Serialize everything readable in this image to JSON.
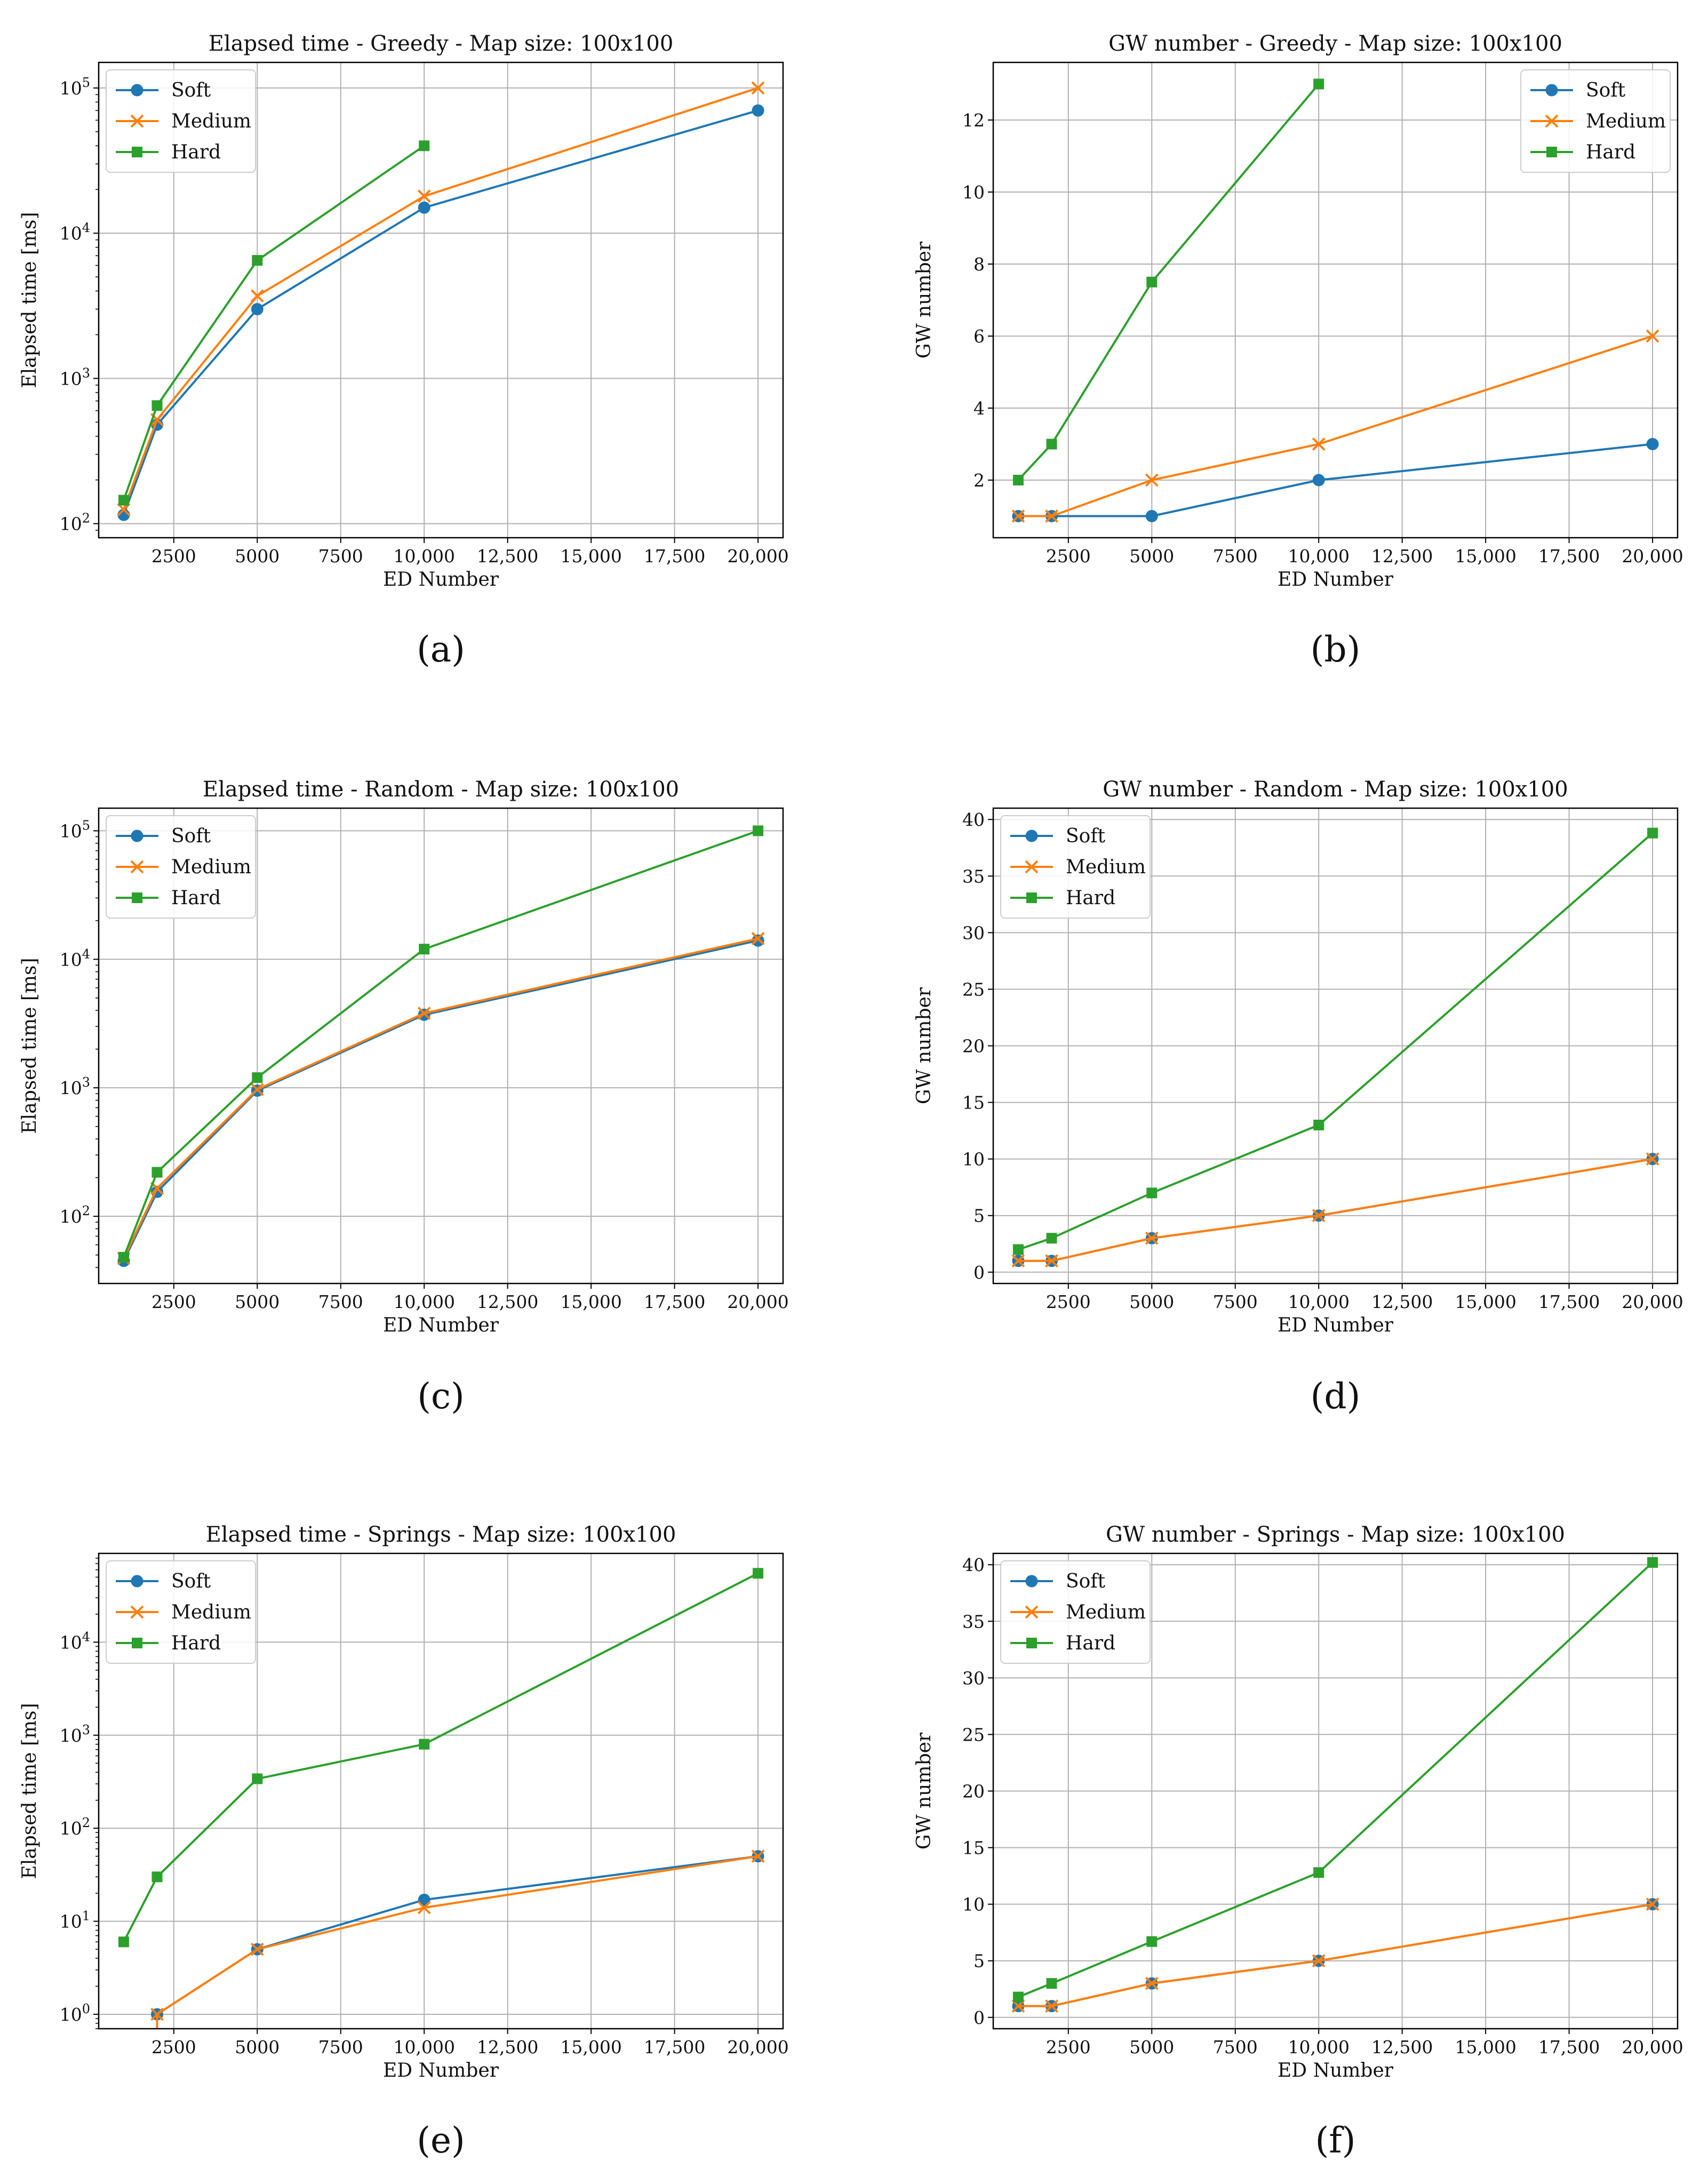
{
  "figure": {
    "caption_note": "Six-panel figure of line charts"
  },
  "colors": {
    "soft": "#1f77b4",
    "medium": "#ff7f0e",
    "hard": "#2ca02c",
    "grid": "#b0b0b0"
  },
  "chart_data": [
    {
      "type": "line",
      "panel": "(a)",
      "yscale": "log",
      "title": "Elapsed time - Greedy - Map size: 100x100",
      "xlabel": "ED Number",
      "ylabel": "Elapsed time [ms]",
      "xlim": [
        250,
        20750
      ],
      "ylim": [
        80,
        150000
      ],
      "xticks": [
        2500,
        5000,
        7500,
        10000,
        12500,
        15000,
        17500,
        20000
      ],
      "xtick_labels": [
        "2500",
        "5000",
        "7500",
        "10,000",
        "12,500",
        "15,000",
        "17,500",
        "20,000"
      ],
      "yticks": [
        100,
        1000,
        10000,
        100000
      ],
      "legend_loc": "upper left",
      "series": [
        {
          "name": "Soft",
          "marker": "circle",
          "x": [
            1000,
            2000,
            5000,
            10000,
            20000
          ],
          "y": [
            115,
            480,
            3000,
            15000,
            70000
          ]
        },
        {
          "name": "Medium",
          "marker": "x",
          "x": [
            1000,
            2000,
            5000,
            10000,
            20000
          ],
          "y": [
            125,
            520,
            3700,
            18000,
            100000
          ]
        },
        {
          "name": "Hard",
          "marker": "square",
          "x": [
            1000,
            2000,
            5000,
            10000
          ],
          "y": [
            145,
            650,
            6500,
            40000
          ]
        }
      ]
    },
    {
      "type": "line",
      "panel": "(b)",
      "yscale": "linear",
      "title": "GW number - Greedy - Map size: 100x100",
      "xlabel": "ED Number",
      "ylabel": "GW number",
      "xlim": [
        250,
        20750
      ],
      "ylim": [
        0.4,
        13.6
      ],
      "xticks": [
        2500,
        5000,
        7500,
        10000,
        12500,
        15000,
        17500,
        20000
      ],
      "xtick_labels": [
        "2500",
        "5000",
        "7500",
        "10,000",
        "12,500",
        "15,000",
        "17,500",
        "20,000"
      ],
      "yticks": [
        2,
        4,
        6,
        8,
        10,
        12
      ],
      "ytick_labels": [
        "2",
        "4",
        "6",
        "8",
        "10",
        "12"
      ],
      "legend_loc": "upper right",
      "series": [
        {
          "name": "Soft",
          "marker": "circle",
          "x": [
            1000,
            2000,
            5000,
            10000,
            20000
          ],
          "y": [
            1,
            1,
            1,
            2,
            3
          ]
        },
        {
          "name": "Medium",
          "marker": "x",
          "x": [
            1000,
            2000,
            5000,
            10000,
            20000
          ],
          "y": [
            1,
            1,
            2,
            3,
            6
          ]
        },
        {
          "name": "Hard",
          "marker": "square",
          "x": [
            1000,
            2000,
            5000,
            10000
          ],
          "y": [
            2,
            3,
            7.5,
            13
          ]
        }
      ]
    },
    {
      "type": "line",
      "panel": "(c)",
      "yscale": "log",
      "title": "Elapsed time - Random - Map size: 100x100",
      "xlabel": "ED Number",
      "ylabel": "Elapsed time [ms]",
      "xlim": [
        250,
        20750
      ],
      "ylim": [
        30,
        150000
      ],
      "xticks": [
        2500,
        5000,
        7500,
        10000,
        12500,
        15000,
        17500,
        20000
      ],
      "xtick_labels": [
        "2500",
        "5000",
        "7500",
        "10,000",
        "12,500",
        "15,000",
        "17,500",
        "20,000"
      ],
      "yticks": [
        100,
        1000,
        10000,
        100000
      ],
      "legend_loc": "upper left",
      "series": [
        {
          "name": "Soft",
          "marker": "circle",
          "x": [
            1000,
            2000,
            5000,
            10000,
            20000
          ],
          "y": [
            45,
            155,
            950,
            3700,
            14000
          ]
        },
        {
          "name": "Medium",
          "marker": "x",
          "x": [
            1000,
            2000,
            5000,
            10000,
            20000
          ],
          "y": [
            47,
            165,
            970,
            3800,
            14500
          ]
        },
        {
          "name": "Hard",
          "marker": "square",
          "x": [
            1000,
            2000,
            5000,
            10000,
            20000
          ],
          "y": [
            48,
            220,
            1200,
            12000,
            100000
          ]
        }
      ]
    },
    {
      "type": "line",
      "panel": "(d)",
      "yscale": "linear",
      "title": "GW number - Random - Map size: 100x100",
      "xlabel": "ED Number",
      "ylabel": "GW number",
      "xlim": [
        250,
        20750
      ],
      "ylim": [
        -1,
        41
      ],
      "xticks": [
        2500,
        5000,
        7500,
        10000,
        12500,
        15000,
        17500,
        20000
      ],
      "xtick_labels": [
        "2500",
        "5000",
        "7500",
        "10,000",
        "12,500",
        "15,000",
        "17,500",
        "20,000"
      ],
      "yticks": [
        0,
        5,
        10,
        15,
        20,
        25,
        30,
        35,
        40
      ],
      "ytick_labels": [
        "0",
        "5",
        "10",
        "15",
        "20",
        "25",
        "30",
        "35",
        "40"
      ],
      "legend_loc": "upper left",
      "series": [
        {
          "name": "Soft",
          "marker": "circle",
          "x": [
            1000,
            2000,
            5000,
            10000,
            20000
          ],
          "y": [
            1,
            1,
            3,
            5,
            10
          ]
        },
        {
          "name": "Medium",
          "marker": "x",
          "x": [
            1000,
            2000,
            5000,
            10000,
            20000
          ],
          "y": [
            1,
            1,
            3,
            5,
            10
          ]
        },
        {
          "name": "Hard",
          "marker": "square",
          "x": [
            1000,
            2000,
            5000,
            10000,
            20000
          ],
          "y": [
            2,
            3,
            7,
            13,
            38.8
          ]
        }
      ]
    },
    {
      "type": "line",
      "panel": "(e)",
      "yscale": "log",
      "title": "Elapsed time - Springs - Map size: 100x100",
      "xlabel": "ED Number",
      "ylabel": "Elapsed time [ms]",
      "xlim": [
        250,
        20750
      ],
      "ylim": [
        0.7,
        90000
      ],
      "xticks": [
        2500,
        5000,
        7500,
        10000,
        12500,
        15000,
        17500,
        20000
      ],
      "xtick_labels": [
        "2500",
        "5000",
        "7500",
        "10,000",
        "12,500",
        "15,000",
        "17,500",
        "20,000"
      ],
      "yticks": [
        1,
        10,
        100,
        1000,
        10000
      ],
      "legend_loc": "upper left",
      "series": [
        {
          "name": "Soft",
          "marker": "circle",
          "x": [
            2000,
            5000,
            10000,
            20000
          ],
          "y": [
            1,
            5,
            17,
            50
          ]
        },
        {
          "name": "Medium",
          "marker": "x",
          "x": [
            2000,
            5000,
            10000,
            20000
          ],
          "y": [
            1,
            5,
            14,
            50
          ],
          "drop_to_bottom_at": 2000
        },
        {
          "name": "Hard",
          "marker": "square",
          "x": [
            1000,
            2000,
            5000,
            10000,
            20000
          ],
          "y": [
            6,
            30,
            340,
            800,
            55000
          ]
        }
      ]
    },
    {
      "type": "line",
      "panel": "(f)",
      "yscale": "linear",
      "title": "GW number - Springs - Map size: 100x100",
      "xlabel": "ED Number",
      "ylabel": "GW number",
      "xlim": [
        250,
        20750
      ],
      "ylim": [
        -1,
        41
      ],
      "xticks": [
        2500,
        5000,
        7500,
        10000,
        12500,
        15000,
        17500,
        20000
      ],
      "xtick_labels": [
        "2500",
        "5000",
        "7500",
        "10,000",
        "12,500",
        "15,000",
        "17,500",
        "20,000"
      ],
      "yticks": [
        0,
        5,
        10,
        15,
        20,
        25,
        30,
        35,
        40
      ],
      "ytick_labels": [
        "0",
        "5",
        "10",
        "15",
        "20",
        "25",
        "30",
        "35",
        "40"
      ],
      "legend_loc": "upper left",
      "series": [
        {
          "name": "Soft",
          "marker": "circle",
          "x": [
            1000,
            2000,
            5000,
            10000,
            20000
          ],
          "y": [
            1,
            1,
            3,
            5,
            10
          ]
        },
        {
          "name": "Medium",
          "marker": "x",
          "x": [
            1000,
            2000,
            5000,
            10000,
            20000
          ],
          "y": [
            1,
            1,
            3,
            5,
            10
          ]
        },
        {
          "name": "Hard",
          "marker": "square",
          "x": [
            1000,
            2000,
            5000,
            10000,
            20000
          ],
          "y": [
            1.8,
            3,
            6.7,
            12.8,
            40.2
          ]
        }
      ]
    }
  ]
}
